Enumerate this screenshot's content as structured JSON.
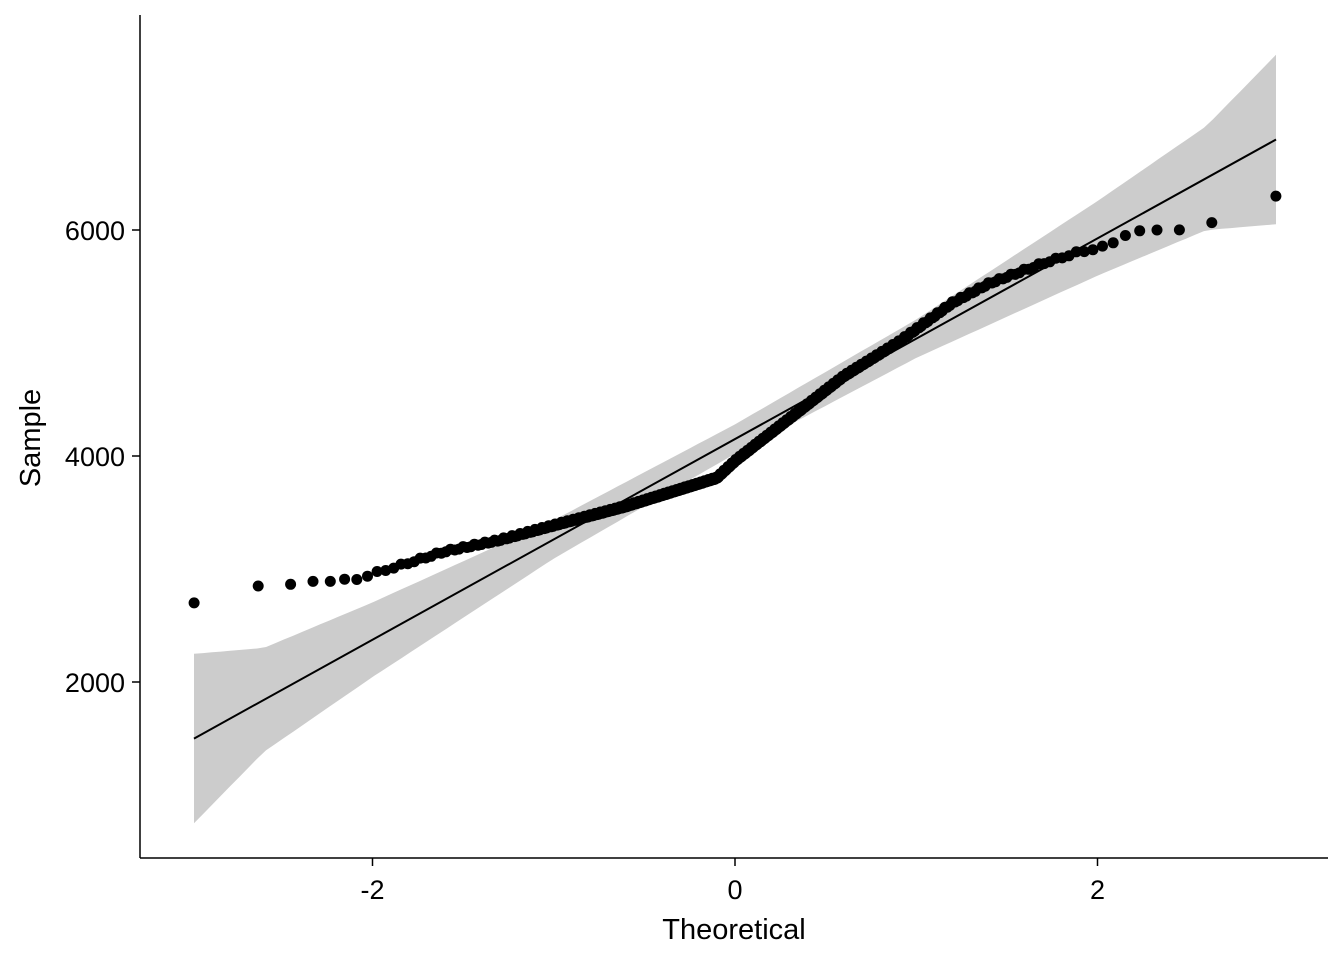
{
  "chart_data": {
    "type": "scatter",
    "subtype": "qq-plot",
    "title": "",
    "xlabel": "Theoretical",
    "ylabel": "Sample",
    "xlim": [
      -3.15,
      3.25
    ],
    "ylim": [
      400,
      8000
    ],
    "x_ticks": [
      -2,
      0,
      2
    ],
    "x_tick_labels": [
      "-2",
      "0",
      "2"
    ],
    "y_ticks": [
      2000,
      4000,
      6000
    ],
    "y_tick_labels": [
      "2000",
      "4000",
      "6000"
    ],
    "grid": false,
    "n_points": 352,
    "sample_curve": [
      [
        -2.985,
        2700
      ],
      [
        -2.63,
        2850
      ],
      [
        -2.45,
        2850
      ],
      [
        -2.33,
        2890
      ],
      [
        -2.2,
        2890
      ],
      [
        -2.1,
        2900
      ],
      [
        -2.0,
        2950
      ],
      [
        -1.8,
        3050
      ],
      [
        -1.6,
        3150
      ],
      [
        -1.3,
        3250
      ],
      [
        -1.0,
        3380
      ],
      [
        -0.6,
        3550
      ],
      [
        -0.3,
        3700
      ],
      [
        -0.1,
        3800
      ],
      [
        0,
        3950
      ],
      [
        0.2,
        4200
      ],
      [
        0.4,
        4450
      ],
      [
        0.6,
        4700
      ],
      [
        0.9,
        5000
      ],
      [
        1.2,
        5350
      ],
      [
        1.4,
        5520
      ],
      [
        1.7,
        5700
      ],
      [
        1.9,
        5800
      ],
      [
        2.05,
        5850
      ],
      [
        2.15,
        5950
      ],
      [
        2.3,
        6000
      ],
      [
        2.45,
        6000
      ],
      [
        2.63,
        6050
      ],
      [
        2.985,
        6300
      ]
    ],
    "reference_line": {
      "intercept": 4150,
      "slope": 888
    },
    "confidence_band": [
      [
        -2.985,
        -750
      ],
      [
        -2.6,
        -460
      ],
      [
        -2.0,
        -330
      ],
      [
        -1.0,
        -170
      ],
      [
        0,
        -130
      ],
      [
        1.0,
        -170
      ],
      [
        2.0,
        -330
      ],
      [
        2.6,
        -460
      ],
      [
        2.985,
        -750
      ]
    ],
    "colors": {
      "points": "#000000",
      "line": "#000000",
      "band": "#cccccc"
    }
  }
}
